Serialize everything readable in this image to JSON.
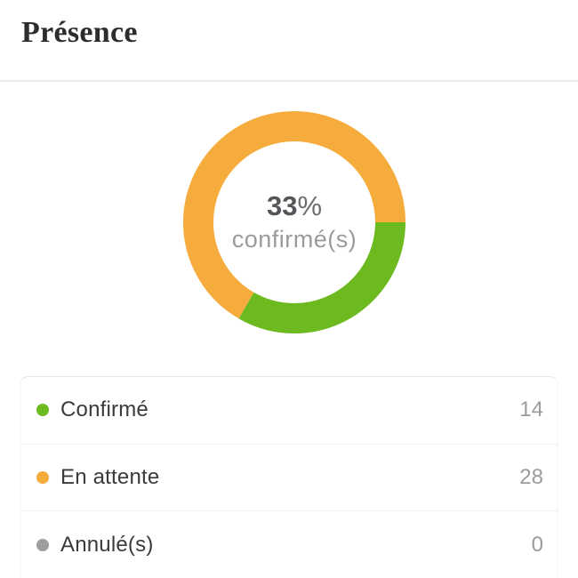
{
  "header": {
    "title": "Présence"
  },
  "chart": {
    "center_percentage": "33",
    "percent_symbol": "%",
    "center_label": "confirmé(s)"
  },
  "chart_data": {
    "type": "pie",
    "subtype": "donut",
    "title": "Présence",
    "categories": [
      "Confirmé",
      "En attente",
      "Annulé(s)"
    ],
    "values": [
      14,
      28,
      0
    ],
    "colors": [
      "#6cba20",
      "#f6ac3d",
      "#9e9e9e"
    ],
    "center_text": "33% confirmé(s)",
    "legend_position": "bottom",
    "donut_hole_ratio": 0.73,
    "start_angle_deg": 0,
    "direction": "clockwise"
  },
  "legend": {
    "items": [
      {
        "label": "Confirmé",
        "value": "14",
        "color": "#6cba20"
      },
      {
        "label": "En attente",
        "value": "28",
        "color": "#f6ac3d"
      },
      {
        "label": "Annulé(s)",
        "value": "0",
        "color": "#9e9e9e"
      }
    ]
  }
}
